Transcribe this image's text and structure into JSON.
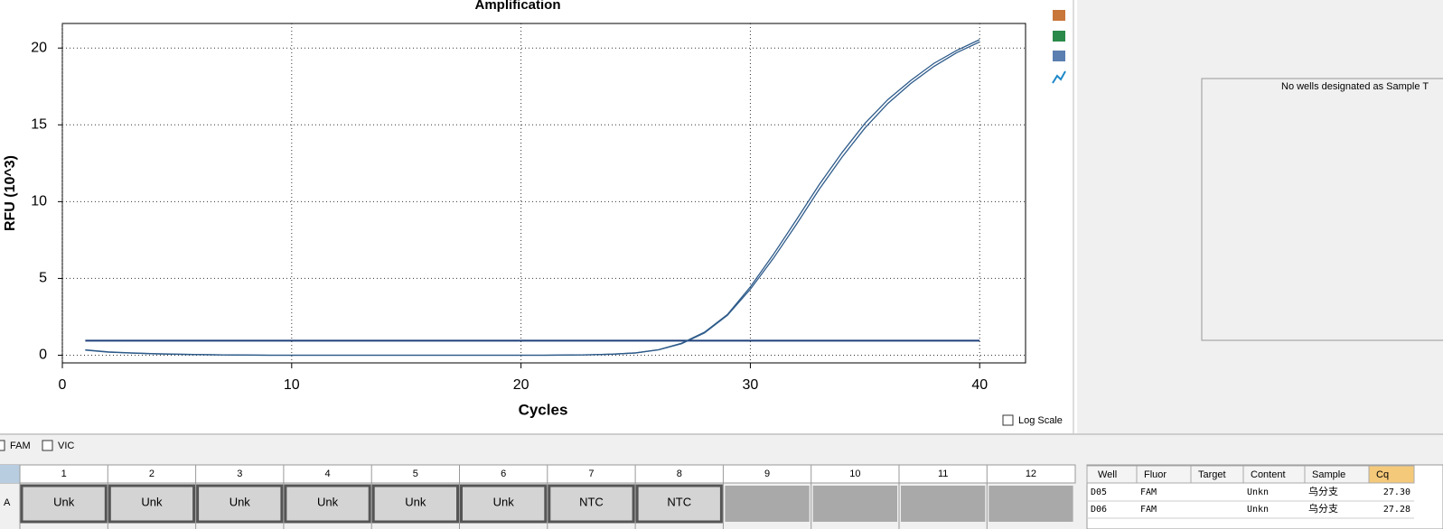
{
  "chart_data": {
    "type": "line",
    "title": "Amplification",
    "x_label": "Cycles",
    "y_label": "RFU (10^3)",
    "x": [
      1,
      2,
      3,
      4,
      5,
      6,
      7,
      8,
      9,
      10,
      11,
      12,
      13,
      14,
      15,
      16,
      17,
      18,
      19,
      20,
      21,
      22,
      23,
      24,
      25,
      26,
      27,
      28,
      29,
      30,
      31,
      32,
      33,
      34,
      35,
      36,
      37,
      38,
      39,
      40
    ],
    "series": [
      {
        "color": "#2e5b8a",
        "values": [
          0.35,
          0.22,
          0.15,
          0.1,
          0.07,
          0.04,
          0.02,
          0.01,
          0,
          0,
          0,
          0,
          0,
          0,
          0,
          0,
          0,
          0,
          0,
          0,
          0,
          0.01,
          0.03,
          0.07,
          0.15,
          0.35,
          0.75,
          1.45,
          2.6,
          4.3,
          6.3,
          8.5,
          10.8,
          12.9,
          14.8,
          16.4,
          17.7,
          18.8,
          19.7,
          20.4
        ]
      },
      {
        "color": "#2e5b8a",
        "values": [
          0.33,
          0.2,
          0.14,
          0.09,
          0.06,
          0.04,
          0.02,
          0.01,
          0,
          0,
          0,
          0,
          0,
          0,
          0,
          0,
          0,
          0,
          0,
          0,
          0,
          0.01,
          0.03,
          0.07,
          0.15,
          0.36,
          0.78,
          1.5,
          2.65,
          4.45,
          6.55,
          8.8,
          11.1,
          13.2,
          15.1,
          16.65,
          17.9,
          19.0,
          19.85,
          20.55
        ]
      }
    ],
    "threshold": 0.95,
    "threshold_color": "#1f3f7a",
    "xlim": [
      0,
      42
    ],
    "ylim": [
      -0.5,
      21.6
    ],
    "xticks": [
      0,
      10,
      20,
      30,
      40
    ],
    "yticks": [
      0,
      5,
      10,
      15,
      20
    ],
    "grid": true
  },
  "log_scale_label": "Log Scale",
  "fluors": [
    "FAM",
    "VIC"
  ],
  "side_message": "No wells designated as Sample T",
  "plate": {
    "columns": [
      "1",
      "2",
      "3",
      "4",
      "5",
      "6",
      "7",
      "8",
      "9",
      "10",
      "11",
      "12"
    ],
    "rows": [
      "A"
    ],
    "cells": [
      "Unk",
      "Unk",
      "Unk",
      "Unk",
      "Unk",
      "Unk",
      "NTC",
      "NTC"
    ]
  },
  "table": {
    "headers": [
      "Well",
      "Fluor",
      "Target",
      "Content",
      "Sample",
      "Cq"
    ],
    "rows": [
      [
        "D05",
        "FAM",
        null,
        "Unkn",
        "乌分支",
        "27.30"
      ],
      [
        "D06",
        "FAM",
        null,
        "Unkn",
        "乌分支",
        "27.28"
      ]
    ]
  }
}
